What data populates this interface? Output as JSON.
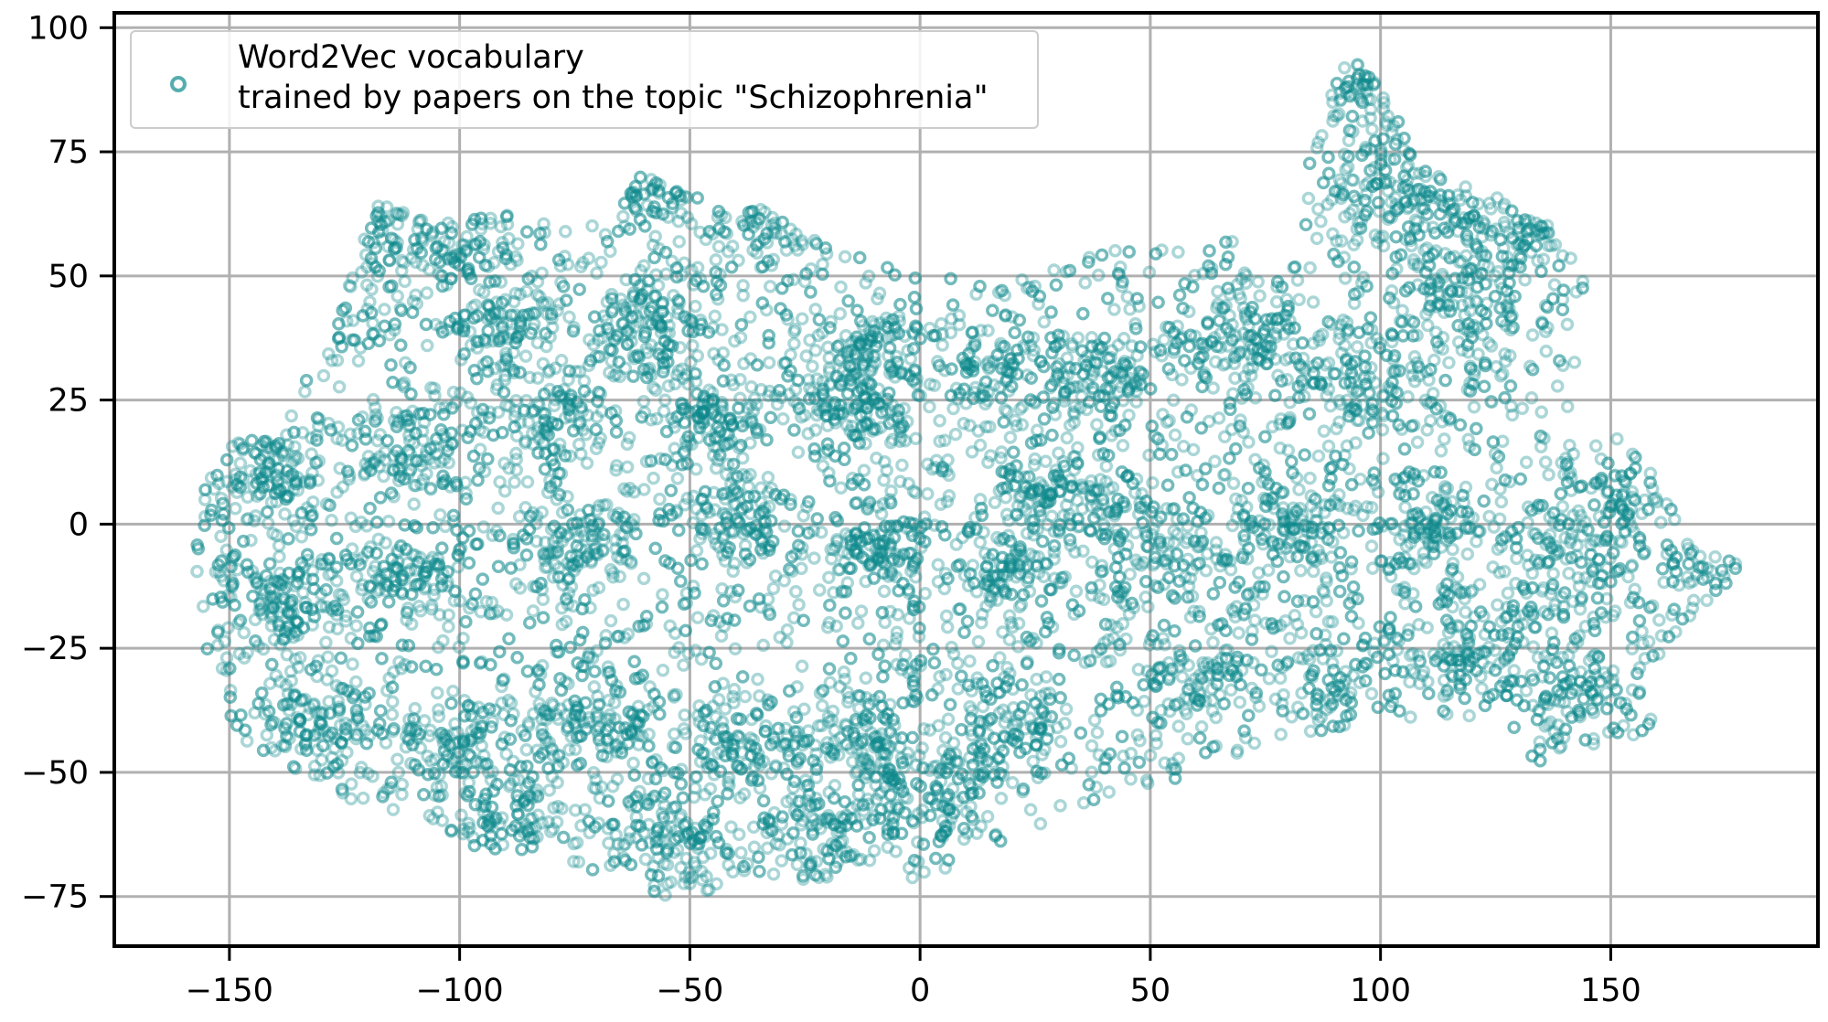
{
  "chart_data": {
    "type": "scatter",
    "title": "",
    "xlabel": "",
    "ylabel": "",
    "xlim": [
      -175,
      195
    ],
    "ylim": [
      -85,
      103
    ],
    "xticks": [
      -150,
      -100,
      -50,
      0,
      50,
      100,
      150
    ],
    "yticks": [
      -75,
      -50,
      -25,
      0,
      25,
      50,
      75,
      100
    ],
    "xtick_labels": [
      "−150",
      "−100",
      "−50",
      "0",
      "50",
      "100",
      "150"
    ],
    "ytick_labels": [
      "−75",
      "−50",
      "−25",
      "0",
      "25",
      "50",
      "75",
      "100"
    ],
    "grid": true,
    "legend_position": "top-left",
    "point_color": "#0e8a8c",
    "point_alpha": 0.35,
    "point_count_estimate": 9000,
    "series": [
      {
        "name": "Word2Vec vocabulary\ntrained by papers on the topic \"Schizophrenia\"",
        "legend_lines": [
          "Word2Vec vocabulary",
          "trained by papers on the topic \"Schizophrenia\""
        ],
        "x_range": [
          -158,
          178
        ],
        "y_range": [
          -76,
          94
        ],
        "boundary_outline": [
          [
            -158,
            2
          ],
          [
            -152,
            15
          ],
          [
            -140,
            22
          ],
          [
            -128,
            35
          ],
          [
            -124,
            48
          ],
          [
            -118,
            65
          ],
          [
            -105,
            60
          ],
          [
            -98,
            62
          ],
          [
            -80,
            63
          ],
          [
            -68,
            60
          ],
          [
            -60,
            71
          ],
          [
            -50,
            66
          ],
          [
            -35,
            64
          ],
          [
            -20,
            57
          ],
          [
            -5,
            52
          ],
          [
            5,
            50
          ],
          [
            25,
            50
          ],
          [
            45,
            57
          ],
          [
            60,
            58
          ],
          [
            75,
            56
          ],
          [
            85,
            75
          ],
          [
            92,
            95
          ],
          [
            100,
            90
          ],
          [
            108,
            72
          ],
          [
            122,
            67
          ],
          [
            135,
            62
          ],
          [
            145,
            52
          ],
          [
            142,
            25
          ],
          [
            137,
            18
          ],
          [
            155,
            17
          ],
          [
            162,
            5
          ],
          [
            168,
            -5
          ],
          [
            178,
            -8
          ],
          [
            175,
            -12
          ],
          [
            162,
            -28
          ],
          [
            158,
            -42
          ],
          [
            145,
            -45
          ],
          [
            138,
            -49
          ],
          [
            128,
            -45
          ],
          [
            118,
            -38
          ],
          [
            100,
            -40
          ],
          [
            85,
            -42
          ],
          [
            70,
            -46
          ],
          [
            55,
            -52
          ],
          [
            40,
            -55
          ],
          [
            25,
            -62
          ],
          [
            12,
            -68
          ],
          [
            -5,
            -72
          ],
          [
            -20,
            -72
          ],
          [
            -30,
            -72
          ],
          [
            -45,
            -74
          ],
          [
            -60,
            -76
          ],
          [
            -68,
            -72
          ],
          [
            -80,
            -66
          ],
          [
            -95,
            -66
          ],
          [
            -110,
            -58
          ],
          [
            -125,
            -57
          ],
          [
            -140,
            -50
          ],
          [
            -150,
            -40
          ],
          [
            -155,
            -25
          ],
          [
            -158,
            -10
          ]
        ],
        "dense_clusters": [
          [
            -118,
            60
          ],
          [
            -100,
            55
          ],
          [
            -60,
            68
          ],
          [
            -35,
            60
          ],
          [
            -130,
            42
          ],
          [
            -90,
            40
          ],
          [
            -140,
            10
          ],
          [
            -110,
            15
          ],
          [
            -80,
            20
          ],
          [
            -45,
            22
          ],
          [
            -15,
            25
          ],
          [
            15,
            30
          ],
          [
            40,
            30
          ],
          [
            70,
            38
          ],
          [
            95,
            30
          ],
          [
            120,
            45
          ],
          [
            130,
            60
          ],
          [
            92,
            85
          ],
          [
            105,
            65
          ],
          [
            -140,
            -15
          ],
          [
            -110,
            -10
          ],
          [
            -75,
            -5
          ],
          [
            -40,
            0
          ],
          [
            -10,
            -5
          ],
          [
            20,
            -10
          ],
          [
            50,
            -5
          ],
          [
            80,
            0
          ],
          [
            110,
            0
          ],
          [
            140,
            -10
          ],
          [
            150,
            5
          ],
          [
            -130,
            -40
          ],
          [
            -100,
            -45
          ],
          [
            -70,
            -40
          ],
          [
            -40,
            -45
          ],
          [
            -10,
            -45
          ],
          [
            20,
            -40
          ],
          [
            60,
            -30
          ],
          [
            90,
            -30
          ],
          [
            120,
            -25
          ],
          [
            140,
            -35
          ],
          [
            -90,
            -60
          ],
          [
            -55,
            -65
          ],
          [
            -20,
            -60
          ],
          [
            5,
            -55
          ],
          [
            175,
            -8
          ],
          [
            -60,
            40
          ],
          [
            30,
            5
          ],
          [
            -10,
            35
          ]
        ]
      }
    ]
  }
}
